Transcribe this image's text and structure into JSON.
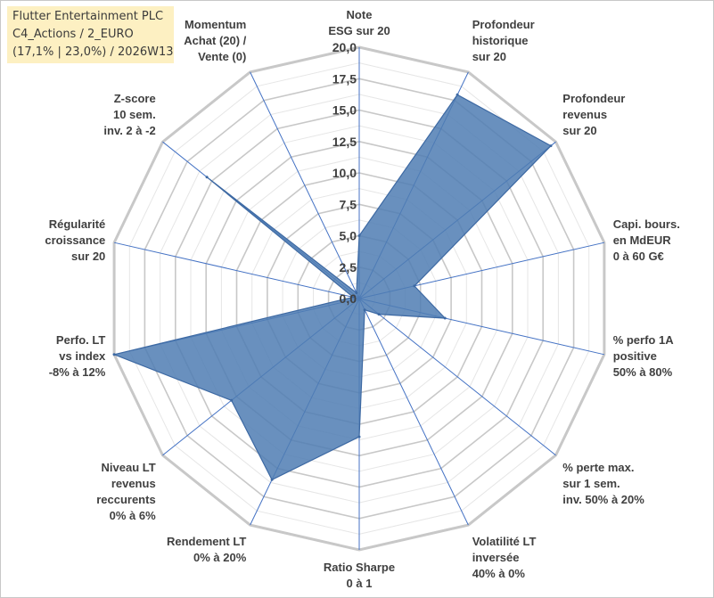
{
  "title_box": {
    "line1": "Flutter Entertainment PLC",
    "line2": "C4_Actions / 2_EURO",
    "line3": "(17,1% | 23,0%) / 2026W13"
  },
  "colors": {
    "fill": "#4f7cb3",
    "stroke": "#3d69a3",
    "ring": "#c8c8c8",
    "inner_ring": "#e6e6e6",
    "spoke": "#4472c4",
    "label": "#404040",
    "title_bg": "#fdf0c2"
  },
  "chart_data": {
    "type": "radar",
    "title": "Flutter Entertainment PLC",
    "range": [
      0,
      20
    ],
    "ticks": [
      "0,0",
      "2,5",
      "5,0",
      "7,5",
      "10,0",
      "12,5",
      "15,0",
      "17,5",
      "20,0"
    ],
    "tick_values": [
      0,
      2.5,
      5,
      7.5,
      10,
      12.5,
      15,
      17.5,
      20
    ],
    "axes": [
      {
        "lines": [
          "Note",
          "ESG sur 20"
        ],
        "value": 5.0
      },
      {
        "lines": [
          "Profondeur",
          "historique",
          "sur 20"
        ],
        "value": 18.0
      },
      {
        "lines": [
          "Profondeur",
          "revenus",
          "sur 20"
        ],
        "value": 19.5
      },
      {
        "lines": [
          "Capi. bours.",
          "en MdEUR",
          "0 à 60 G€"
        ],
        "value": 4.5
      },
      {
        "lines": [
          "% perfo 1A",
          "positive",
          "50% à 80%"
        ],
        "value": 7.0
      },
      {
        "lines": [
          "% perte max.",
          "sur 1 sem.",
          "inv. 50% à 20%"
        ],
        "value": 2.0
      },
      {
        "lines": [
          "Volatilité LT",
          "inversée",
          "40% à 0%"
        ],
        "value": 1.0
      },
      {
        "lines": [
          "Ratio Sharpe",
          "0 à 1"
        ],
        "value": 11.0
      },
      {
        "lines": [
          "Rendement LT",
          "0% à 20%"
        ],
        "value": 16.0
      },
      {
        "lines": [
          "Niveau LT",
          "revenus",
          "reccurents",
          "0% à 6%"
        ],
        "value": 13.0
      },
      {
        "lines": [
          "Perfo. LT",
          "vs index",
          "-8% à 12%"
        ],
        "value": 20.0
      },
      {
        "lines": [
          "Régularité",
          "croissance",
          "sur 20"
        ],
        "value": 0.5
      },
      {
        "lines": [
          "Z-score",
          "10 sem.",
          "inv. 2 à -2"
        ],
        "value": 15.5
      },
      {
        "lines": [
          "Momentum",
          "Achat (20) /",
          "Vente (0)"
        ],
        "value": 0.5
      }
    ]
  }
}
